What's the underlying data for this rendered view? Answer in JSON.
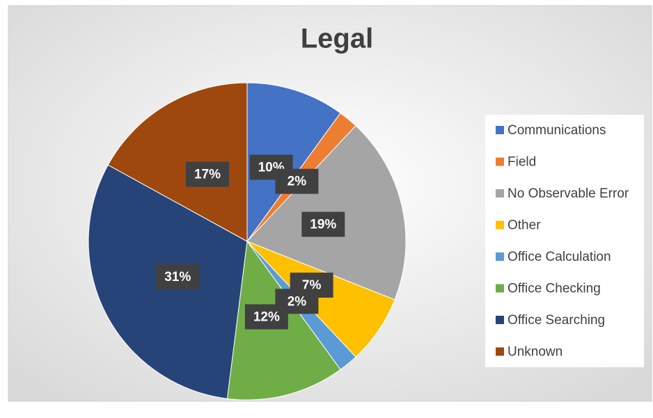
{
  "chart_data": {
    "type": "pie",
    "title": "Legal",
    "categories": [
      "Communications",
      "Field",
      "No Observable Error",
      "Other",
      "Office Calculation",
      "Office Checking",
      "Office Searching",
      "Unknown"
    ],
    "values": [
      10,
      2,
      19,
      7,
      2,
      12,
      31,
      17
    ],
    "value_labels": [
      "10%",
      "2%",
      "19%",
      "7%",
      "2%",
      "12%",
      "31%",
      "17%"
    ],
    "colors": [
      "#4472c4",
      "#ed7d31",
      "#a5a5a5",
      "#ffc000",
      "#5b9bd5",
      "#70ad47",
      "#264478",
      "#9e480e"
    ],
    "legend": "right"
  }
}
